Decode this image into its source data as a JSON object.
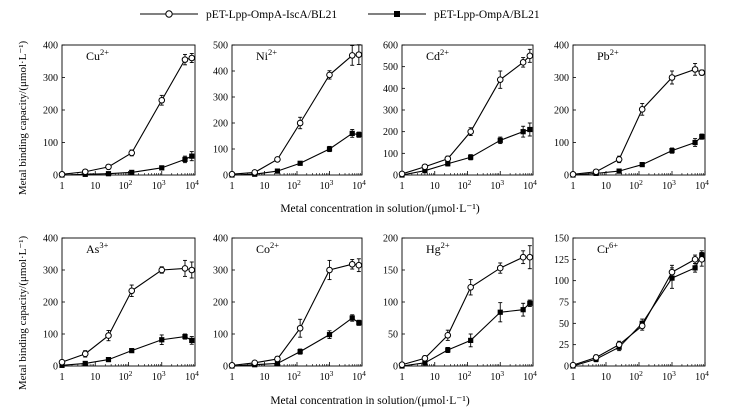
{
  "legend": {
    "series_a": "pET-Lpp-OmpA-IscA/BL21",
    "series_b": "pET-Lpp-OmpA/BL21"
  },
  "axis_text": {
    "ylabel": "Metal binding capacity/(μmol·L⁻¹)",
    "xlabel": "Metal concentration in solution/(μmol·L⁻¹)"
  },
  "chart_data": [
    {
      "type": "line",
      "title": "Cu",
      "title_sup": "2+",
      "x": [
        1,
        5,
        25,
        125,
        1000,
        5000,
        8000
      ],
      "ylim": [
        0,
        400
      ],
      "yticks": [
        0,
        100,
        200,
        300,
        400
      ],
      "xscale": "log",
      "xticks": [
        "1",
        "10",
        "10^2",
        "10^3",
        "10^4"
      ],
      "series": [
        {
          "name": "pET-Lpp-OmpA-IscA/BL21",
          "marker": "open-circle",
          "values": [
            2,
            10,
            25,
            68,
            230,
            355,
            360
          ],
          "errors": [
            2,
            5,
            5,
            9,
            15,
            16,
            14
          ]
        },
        {
          "name": "pET-Lpp-OmpA/BL21",
          "marker": "filled-square",
          "values": [
            0,
            2,
            4,
            8,
            22,
            48,
            58
          ],
          "errors": [
            1,
            2,
            2,
            3,
            5,
            10,
            14
          ]
        }
      ]
    },
    {
      "type": "line",
      "title": "Ni",
      "title_sup": "2+",
      "x": [
        1,
        5,
        25,
        125,
        1000,
        5000,
        8000
      ],
      "ylim": [
        0,
        500
      ],
      "yticks": [
        0,
        100,
        200,
        300,
        400,
        500
      ],
      "xscale": "log",
      "xticks": [
        "1",
        "10",
        "10^2",
        "10^3",
        "10^4"
      ],
      "series": [
        {
          "name": "pET-Lpp-OmpA-IscA/BL21",
          "marker": "open-circle",
          "values": [
            3,
            10,
            60,
            200,
            385,
            460,
            463
          ],
          "errors": [
            2,
            4,
            8,
            22,
            16,
            38,
            38
          ]
        },
        {
          "name": "pET-Lpp-OmpA/BL21",
          "marker": "filled-square",
          "values": [
            0,
            3,
            15,
            45,
            100,
            160,
            155
          ],
          "errors": [
            1,
            2,
            4,
            6,
            10,
            15,
            10
          ]
        }
      ]
    },
    {
      "type": "line",
      "title": "Cd",
      "title_sup": "2+",
      "x": [
        1,
        5,
        25,
        125,
        1000,
        5000,
        8000
      ],
      "ylim": [
        0,
        600
      ],
      "yticks": [
        0,
        100,
        200,
        300,
        400,
        500,
        600
      ],
      "xscale": "log",
      "xticks": [
        "1",
        "10",
        "10^2",
        "10^3",
        "10^4"
      ],
      "series": [
        {
          "name": "pET-Lpp-OmpA-IscA/BL21",
          "marker": "open-circle",
          "values": [
            5,
            38,
            75,
            200,
            440,
            520,
            550
          ],
          "errors": [
            3,
            10,
            12,
            18,
            40,
            22,
            30
          ]
        },
        {
          "name": "pET-Lpp-OmpA/BL21",
          "marker": "filled-square",
          "values": [
            0,
            20,
            52,
            82,
            160,
            200,
            210
          ],
          "errors": [
            2,
            8,
            10,
            12,
            15,
            25,
            30
          ]
        }
      ]
    },
    {
      "type": "line",
      "title": "Pb",
      "title_sup": "2+",
      "x": [
        1,
        5,
        25,
        125,
        1000,
        5000,
        8000
      ],
      "ylim": [
        0,
        400
      ],
      "yticks": [
        0,
        100,
        200,
        300,
        400
      ],
      "xscale": "log",
      "xticks": [
        "1",
        "10",
        "10^2",
        "10^3",
        "10^4"
      ],
      "series": [
        {
          "name": "pET-Lpp-OmpA-IscA/BL21",
          "marker": "open-circle",
          "values": [
            2,
            10,
            48,
            202,
            300,
            325,
            315
          ],
          "errors": [
            1,
            3,
            10,
            18,
            20,
            18,
            8
          ]
        },
        {
          "name": "pET-Lpp-OmpA/BL21",
          "marker": "filled-square",
          "values": [
            0,
            5,
            12,
            32,
            75,
            100,
            118
          ],
          "errors": [
            1,
            2,
            3,
            5,
            8,
            12,
            8
          ]
        }
      ]
    },
    {
      "type": "line",
      "title": "As",
      "title_sup": "3+",
      "x": [
        1,
        5,
        25,
        125,
        1000,
        5000,
        8000
      ],
      "ylim": [
        0,
        400
      ],
      "yticks": [
        0,
        100,
        200,
        300,
        400
      ],
      "xscale": "log",
      "xticks": [
        "1",
        "10",
        "10^2",
        "10^3",
        "10^4"
      ],
      "series": [
        {
          "name": "pET-Lpp-OmpA-IscA/BL21",
          "marker": "open-circle",
          "values": [
            12,
            38,
            95,
            235,
            300,
            305,
            300
          ],
          "errors": [
            5,
            10,
            16,
            18,
            10,
            25,
            25
          ]
        },
        {
          "name": "pET-Lpp-OmpA/BL21",
          "marker": "filled-square",
          "values": [
            2,
            8,
            20,
            48,
            82,
            92,
            80
          ],
          "errors": [
            1,
            3,
            5,
            6,
            15,
            8,
            12
          ]
        }
      ]
    },
    {
      "type": "line",
      "title": "Co",
      "title_sup": "2+",
      "x": [
        1,
        5,
        25,
        125,
        1000,
        5000,
        8000
      ],
      "ylim": [
        0,
        400
      ],
      "yticks": [
        0,
        100,
        200,
        300,
        400
      ],
      "xscale": "log",
      "xticks": [
        "1",
        "10",
        "10^2",
        "10^3",
        "10^4"
      ],
      "series": [
        {
          "name": "pET-Lpp-OmpA-IscA/BL21",
          "marker": "open-circle",
          "values": [
            2,
            10,
            22,
            118,
            300,
            318,
            315
          ],
          "errors": [
            1,
            4,
            8,
            28,
            30,
            15,
            20
          ]
        },
        {
          "name": "pET-Lpp-OmpA/BL21",
          "marker": "filled-square",
          "values": [
            0,
            4,
            8,
            45,
            98,
            150,
            135
          ],
          "errors": [
            1,
            2,
            3,
            8,
            12,
            10,
            8
          ]
        }
      ]
    },
    {
      "type": "line",
      "title": "Hg",
      "title_sup": "2+",
      "x": [
        1,
        5,
        25,
        125,
        1000,
        5000,
        8000
      ],
      "ylim": [
        0,
        200
      ],
      "yticks": [
        0,
        50,
        100,
        150,
        200
      ],
      "xscale": "log",
      "xticks": [
        "1",
        "10",
        "10^2",
        "10^3",
        "10^4"
      ],
      "series": [
        {
          "name": "pET-Lpp-OmpA-IscA/BL21",
          "marker": "open-circle",
          "values": [
            2,
            12,
            48,
            123,
            153,
            170,
            170
          ],
          "errors": [
            1,
            4,
            8,
            12,
            8,
            10,
            18
          ]
        },
        {
          "name": "pET-Lpp-OmpA/BL21",
          "marker": "filled-square",
          "values": [
            0,
            5,
            25,
            40,
            84,
            88,
            98
          ],
          "errors": [
            1,
            2,
            4,
            10,
            15,
            10,
            5
          ]
        }
      ]
    },
    {
      "type": "line",
      "title": "Cr",
      "title_sup": "6+",
      "x": [
        1,
        5,
        25,
        125,
        1000,
        5000,
        8000
      ],
      "ylim": [
        0,
        150
      ],
      "yticks": [
        0,
        25,
        50,
        75,
        100,
        125,
        150
      ],
      "xscale": "log",
      "xticks": [
        "1",
        "10",
        "10^2",
        "10^3",
        "10^4"
      ],
      "series": [
        {
          "name": "pET-Lpp-OmpA-IscA/BL21",
          "marker": "open-circle",
          "values": [
            1,
            10,
            25,
            47,
            110,
            125,
            125
          ],
          "errors": [
            1,
            3,
            4,
            5,
            8,
            5,
            8
          ]
        },
        {
          "name": "pET-Lpp-OmpA/BL21",
          "marker": "filled-square",
          "values": [
            0,
            8,
            22,
            50,
            103,
            115,
            130
          ],
          "errors": [
            1,
            3,
            4,
            5,
            12,
            5,
            5
          ]
        }
      ]
    }
  ]
}
